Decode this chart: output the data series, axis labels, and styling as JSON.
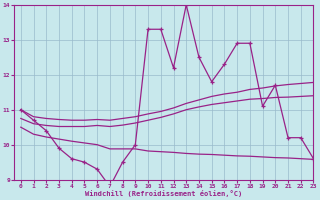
{
  "x": [
    0,
    1,
    2,
    3,
    4,
    5,
    6,
    7,
    8,
    9,
    10,
    11,
    12,
    13,
    14,
    15,
    16,
    17,
    18,
    19,
    20,
    21,
    22,
    23
  ],
  "line1": [
    11.0,
    10.7,
    10.4,
    9.9,
    9.6,
    9.5,
    9.3,
    8.8,
    9.5,
    10.0,
    13.3,
    13.3,
    12.2,
    14.0,
    12.5,
    11.8,
    12.3,
    12.9,
    12.9,
    11.1,
    11.7,
    10.2,
    10.2,
    9.6
  ],
  "line2": [
    11.0,
    10.8,
    10.75,
    10.72,
    10.7,
    10.7,
    10.72,
    10.7,
    10.75,
    10.8,
    10.88,
    10.95,
    11.05,
    11.18,
    11.28,
    11.38,
    11.45,
    11.5,
    11.58,
    11.62,
    11.68,
    11.72,
    11.75,
    11.78
  ],
  "line3": [
    10.75,
    10.6,
    10.55,
    10.52,
    10.52,
    10.52,
    10.55,
    10.52,
    10.56,
    10.62,
    10.7,
    10.78,
    10.88,
    11.0,
    11.08,
    11.15,
    11.2,
    11.25,
    11.3,
    11.32,
    11.35,
    11.36,
    11.38,
    11.4
  ],
  "line4": [
    10.5,
    10.3,
    10.22,
    10.16,
    10.1,
    10.05,
    10.0,
    9.88,
    9.88,
    9.88,
    9.82,
    9.8,
    9.78,
    9.75,
    9.73,
    9.72,
    9.7,
    9.68,
    9.67,
    9.65,
    9.63,
    9.62,
    9.6,
    9.58
  ],
  "line_color": "#992288",
  "bg_color": "#C8E8EC",
  "grid_color": "#99BBCC",
  "xlabel": "Windchill (Refroidissement éolien,°C)",
  "xlim": [
    -0.5,
    23
  ],
  "ylim": [
    9,
    14
  ],
  "xticks": [
    0,
    1,
    2,
    3,
    4,
    5,
    6,
    7,
    8,
    9,
    10,
    11,
    12,
    13,
    14,
    15,
    16,
    17,
    18,
    19,
    20,
    21,
    22,
    23
  ],
  "yticks": [
    9,
    10,
    11,
    12,
    13,
    14
  ]
}
